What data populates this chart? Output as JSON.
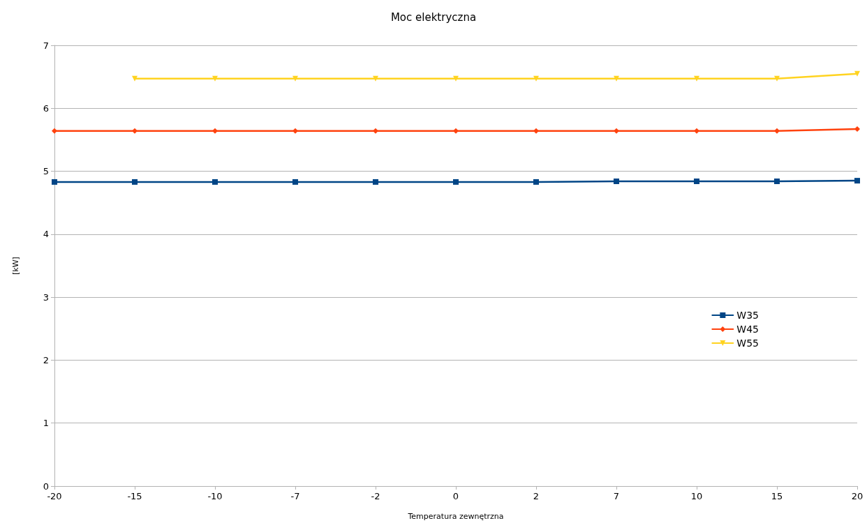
{
  "chart_data": {
    "type": "line",
    "title": "Moc elektryczna",
    "xlabel": "Temperatura zewnętrzna",
    "ylabel": "[kW]",
    "categories": [
      "-20",
      "-15",
      "-10",
      "-7",
      "-2",
      "0",
      "2",
      "7",
      "10",
      "15",
      "20"
    ],
    "series": [
      {
        "name": "W35",
        "color": "#004586",
        "marker": "square",
        "values": [
          4.83,
          4.83,
          4.83,
          4.83,
          4.83,
          4.83,
          4.83,
          4.84,
          4.84,
          4.84,
          4.85
        ]
      },
      {
        "name": "W45",
        "color": "#ff420e",
        "marker": "diamond",
        "values": [
          5.64,
          5.64,
          5.64,
          5.64,
          5.64,
          5.64,
          5.64,
          5.64,
          5.64,
          5.64,
          5.67
        ]
      },
      {
        "name": "W55",
        "color": "#ffd320",
        "marker": "triangle",
        "values": [
          null,
          6.47,
          6.47,
          6.47,
          6.47,
          6.47,
          6.47,
          6.47,
          6.47,
          6.47,
          6.55
        ]
      }
    ],
    "ylim": [
      0,
      7
    ],
    "yticks": [
      0,
      1,
      2,
      3,
      4,
      5,
      6,
      7
    ],
    "grid": "y",
    "legend": "right",
    "line_style": "solid"
  }
}
